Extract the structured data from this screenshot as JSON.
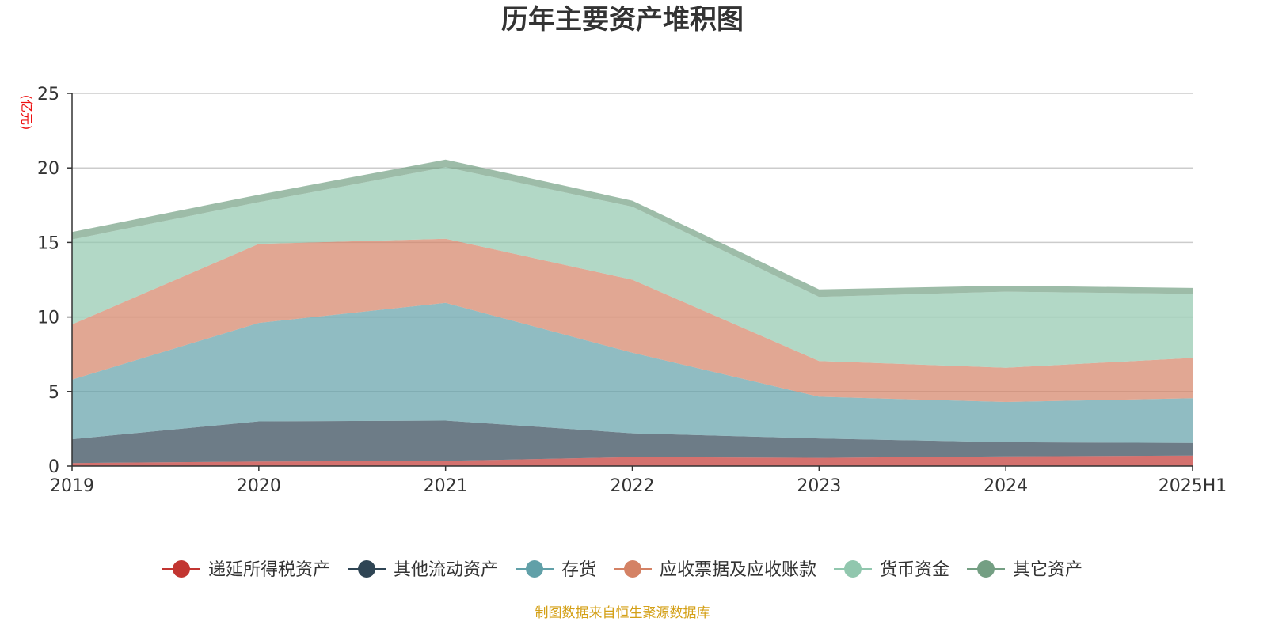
{
  "chart_data": {
    "type": "area",
    "stacked": true,
    "title": "历年主要资产堆积图",
    "ylabel": "(亿元)",
    "xlabel": "",
    "categories": [
      "2019",
      "2020",
      "2021",
      "2022",
      "2023",
      "2024",
      "2025H1"
    ],
    "ylim": [
      0,
      25
    ],
    "yticks": [
      "0",
      "5",
      "10",
      "15",
      "20",
      "25"
    ],
    "grid": true,
    "legend_position": "bottom-center",
    "series": [
      {
        "name": "递延所得税资产",
        "color": "#c23531",
        "values": [
          0.2,
          0.3,
          0.35,
          0.6,
          0.55,
          0.65,
          0.7
        ]
      },
      {
        "name": "其他流动资产",
        "color": "#2f4554",
        "values": [
          1.6,
          2.7,
          2.7,
          1.6,
          1.3,
          0.95,
          0.85
        ]
      },
      {
        "name": "存货",
        "color": "#61a0a8",
        "values": [
          4.0,
          6.6,
          7.9,
          5.4,
          2.8,
          2.7,
          3.0
        ]
      },
      {
        "name": "应收票据及应收账款",
        "color": "#d48265",
        "values": [
          3.7,
          5.3,
          4.3,
          4.9,
          2.4,
          2.3,
          2.7
        ]
      },
      {
        "name": "货币资金",
        "color": "#91c7ae",
        "values": [
          5.7,
          2.8,
          4.8,
          4.9,
          4.3,
          5.1,
          4.3
        ]
      },
      {
        "name": "其它资产",
        "color": "#749f83",
        "values": [
          0.5,
          0.5,
          0.5,
          0.4,
          0.5,
          0.4,
          0.4
        ]
      }
    ]
  },
  "footer": {
    "source": "制图数据来自恒生聚源数据库",
    "source_color": "#d4a017"
  },
  "colors": {
    "unit_color": "#ee1111",
    "grid_color": "#cccccc",
    "axis_color": "#333333"
  }
}
